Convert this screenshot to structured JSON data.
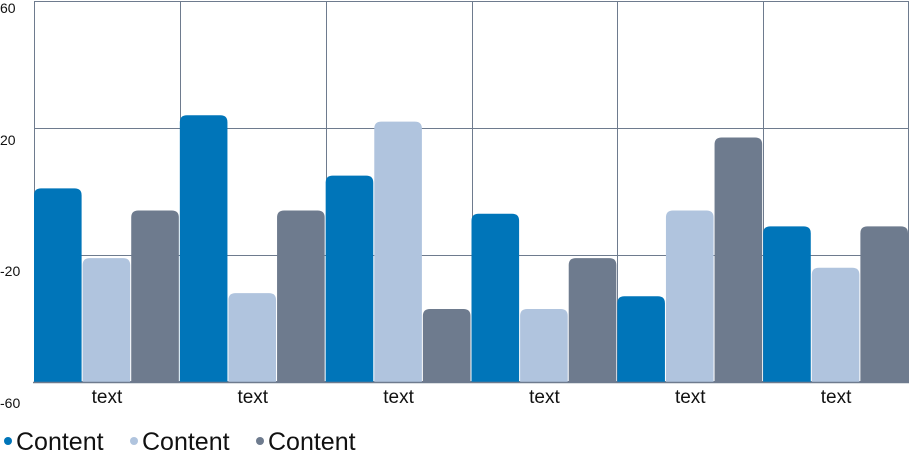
{
  "chart_data": {
    "type": "bar",
    "categories": [
      "text",
      "text",
      "text",
      "text",
      "text",
      "text"
    ],
    "series": [
      {
        "name": "Content",
        "color": "#0075b9",
        "values": [
          1,
          24,
          5,
          -7,
          -33,
          -11
        ]
      },
      {
        "name": "Content",
        "color": "#b0c4de",
        "values": [
          -21,
          -32,
          22,
          -37,
          -6,
          -24
        ]
      },
      {
        "name": "Content",
        "color": "#6e7b8e",
        "values": [
          -6,
          -6,
          -37,
          -21,
          17,
          -11
        ]
      }
    ],
    "y_ticks": [
      "60",
      "20",
      "-20",
      "-60"
    ],
    "ylim": [
      -60,
      60
    ],
    "y_grid_values": [
      20,
      -20
    ],
    "grid": true,
    "legend_position": "bottom-left",
    "gridline_color": "#6e7b8e"
  }
}
